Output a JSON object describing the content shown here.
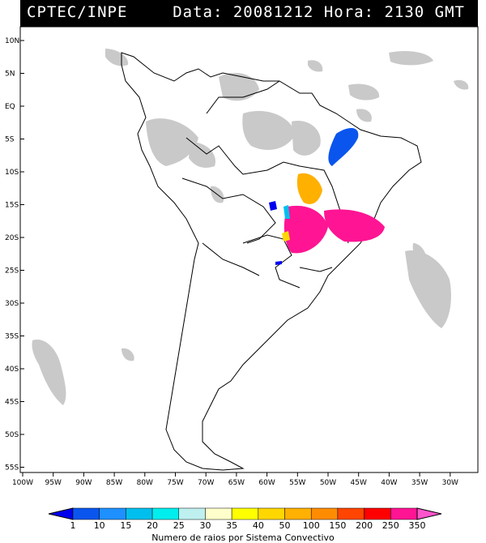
{
  "header": {
    "source": "CPTEC/INPE",
    "date_label": "Data:",
    "date": "20081212",
    "hour_label": "Hora:",
    "hour": "2130 GMT"
  },
  "map": {
    "lat_labels": [
      "10N",
      "5N",
      "EQ",
      "5S",
      "10S",
      "15S",
      "20S",
      "25S",
      "30S",
      "35S",
      "40S",
      "45S",
      "50S",
      "55S"
    ],
    "lon_labels": [
      "100W",
      "95W",
      "90W",
      "85W",
      "80W",
      "75W",
      "70W",
      "65W",
      "60W",
      "55W",
      "50W",
      "45W",
      "40W",
      "35W",
      "30W"
    ],
    "lat_range": [
      10,
      -56
    ],
    "lon_range": [
      -100,
      -27
    ],
    "cloud_color": "#c9c9c9",
    "coast_color": "#000000"
  },
  "legend": {
    "title": "Numero de raios por Sistema Convectivo",
    "values": [
      "1",
      "10",
      "15",
      "20",
      "25",
      "30",
      "35",
      "40",
      "50",
      "100",
      "150",
      "200",
      "250",
      "350"
    ],
    "colors": [
      "#0000ee",
      "#0a55ee",
      "#1e90ff",
      "#00bfee",
      "#00eeee",
      "#bff0f0",
      "#ffffcc",
      "#ffff00",
      "#ffd700",
      "#ffb000",
      "#ff8c00",
      "#ff4500",
      "#ff0000",
      "#ff1493",
      "#ff55cc"
    ]
  },
  "lightning_systems": [
    {
      "name": "north-east-blue",
      "color": "#0a55ee"
    },
    {
      "name": "central-orange",
      "color": "#ffb000"
    },
    {
      "name": "south-east-magenta",
      "color": "#ff1493"
    },
    {
      "name": "west-blue",
      "color": "#0000ee"
    },
    {
      "name": "west-cyan",
      "color": "#00bfee"
    },
    {
      "name": "small-yellow",
      "color": "#ffd700"
    }
  ]
}
